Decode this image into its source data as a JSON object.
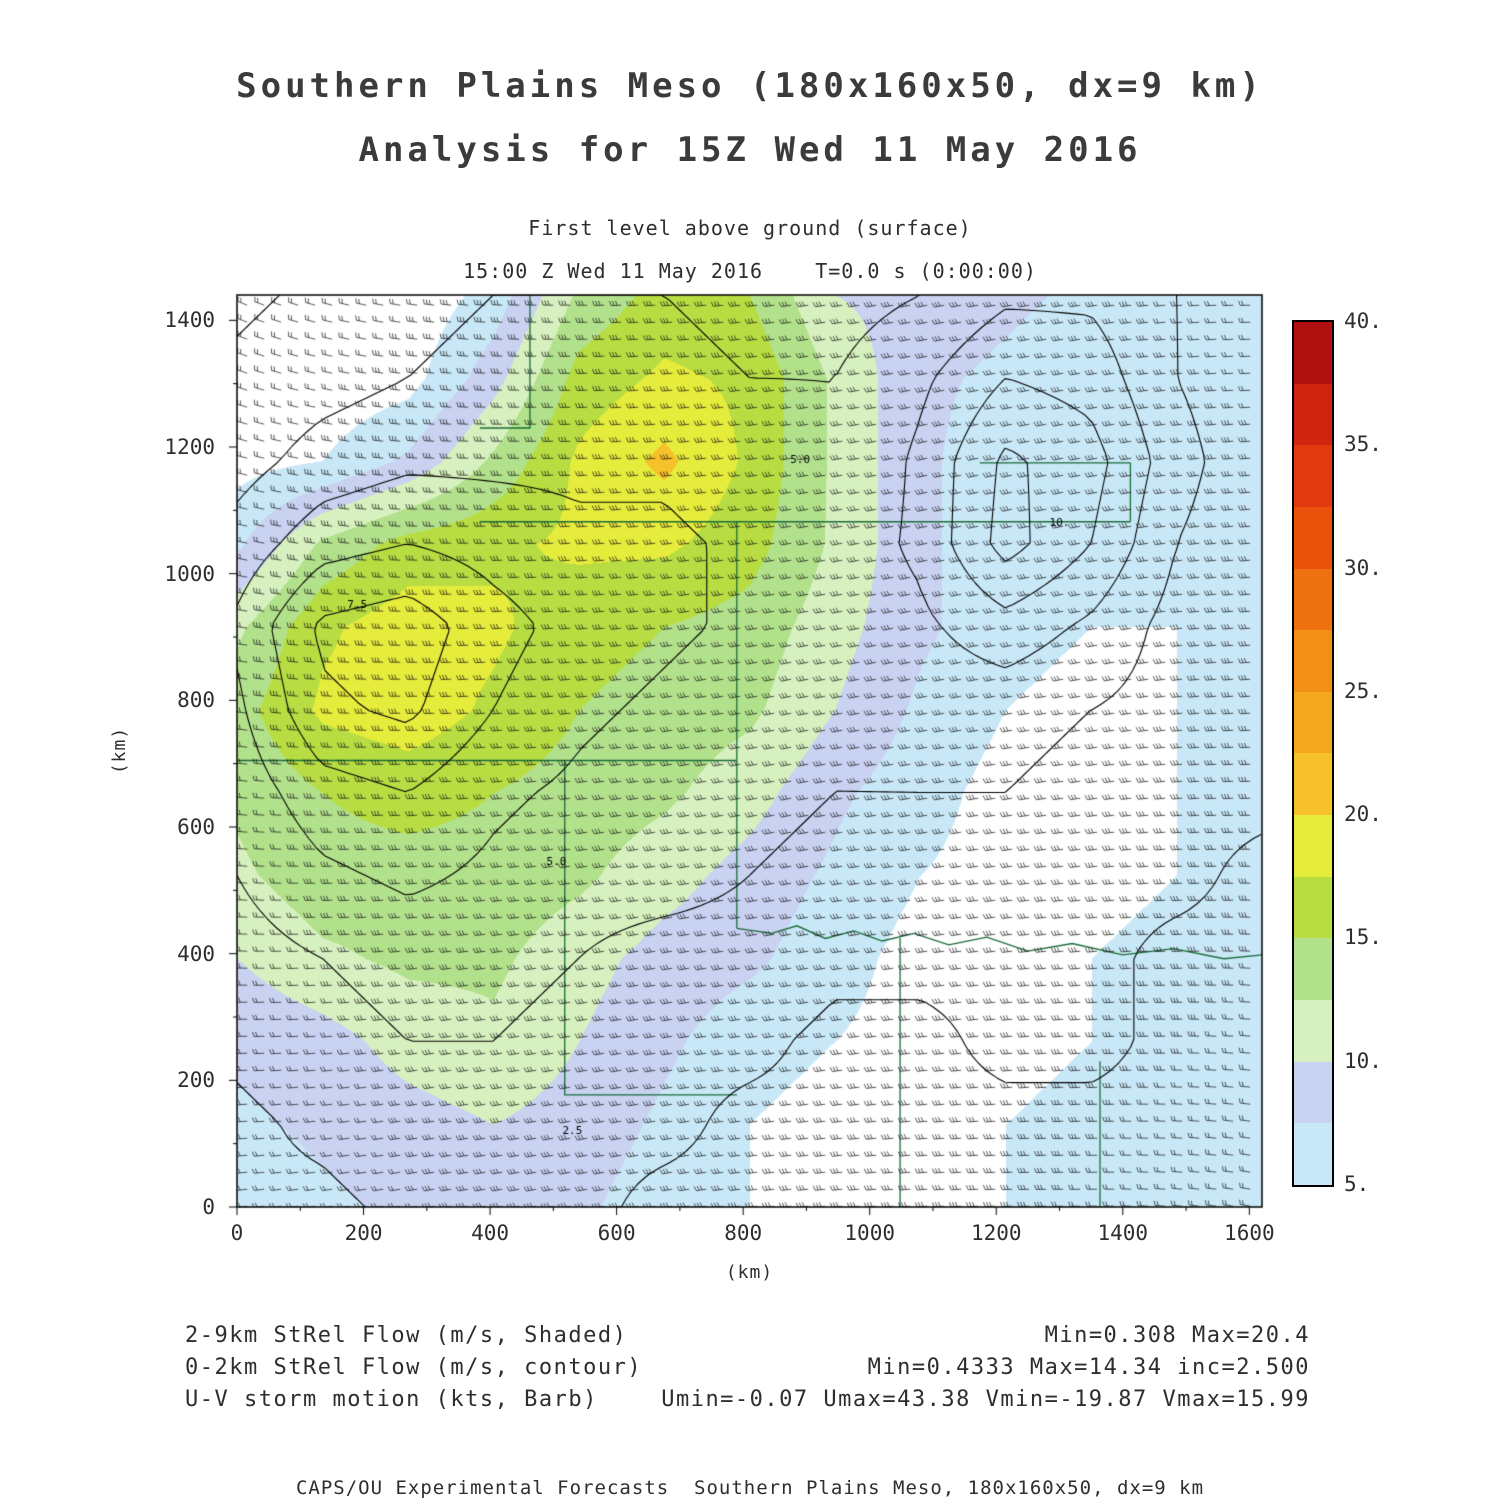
{
  "header": {
    "title_line1": "Southern Plains Meso (180x160x50, dx=9 km)",
    "title_line2": "Analysis for 15Z Wed 11 May 2016",
    "subtitle_line1": "First level above ground (surface)",
    "subtitle_line2": "15:00 Z Wed 11 May 2016    T=0.0 s (0:00:00)"
  },
  "axes": {
    "x_label": "(km)",
    "y_label": "(km)",
    "x_ticks": [
      0,
      200,
      400,
      600,
      800,
      1000,
      1200,
      1400,
      1600
    ],
    "y_ticks": [
      0,
      200,
      400,
      600,
      800,
      1000,
      1200,
      1400
    ]
  },
  "legend": {
    "rows": [
      {
        "label": "2-9km StRel Flow (m/s, Shaded)",
        "stats": "Min=0.308 Max=20.4"
      },
      {
        "label": "0-2km StRel Flow (m/s, contour)",
        "stats": "Min=0.4333 Max=14.34 inc=2.500"
      },
      {
        "label": "U-V storm motion (kts, Barb)",
        "stats": "Umin=-0.07 Umax=43.38 Vmin=-19.87 Vmax=15.99"
      }
    ]
  },
  "footer": {
    "text": "CAPS/OU Experimental Forecasts  Southern Plains Meso, 180x160x50, dx=9 km"
  },
  "chart_data": {
    "type": "heatmap",
    "title": "Southern Plains Meso (180x160x50, dx=9 km) Analysis for 15Z Wed 11 May 2016",
    "x_range": [
      0,
      1620
    ],
    "y_range": [
      0,
      1440
    ],
    "xlabel": "(km)",
    "ylabel": "(km)",
    "shaded_field": {
      "name": "2-9km StRel Flow (m/s, Shaded)",
      "min": 0.308,
      "max": 20.4
    },
    "contour_field": {
      "name": "0-2km StRel Flow (m/s, contour)",
      "min": 0.4333,
      "max": 14.34,
      "inc": 2.5
    },
    "barb_field": {
      "name": "U-V storm motion (kts, Barb)",
      "umin": -0.07,
      "umax": 43.38,
      "vmin": -19.87,
      "vmax": 15.99
    },
    "colorbar": {
      "min": 5,
      "step": 2.5,
      "max": 40,
      "colors": [
        "#c9e8f7",
        "#c9d2f1",
        "#d7f0bf",
        "#b2e18c",
        "#b8dd43",
        "#e6ec3c",
        "#f6c12b",
        "#f4a81f",
        "#f18f16",
        "#ee7110",
        "#ea520c",
        "#e23a0e",
        "#d02410",
        "#b01010"
      ],
      "tick_values": [
        5,
        10,
        15,
        20,
        25,
        30,
        35,
        40
      ],
      "tick_labels": [
        "5.",
        "10.",
        "15.",
        "20.",
        "25.",
        "30.",
        "35.",
        "40."
      ]
    },
    "shade_grid": [
      [
        3,
        3,
        3,
        6,
        13,
        16,
        15,
        10,
        9,
        8,
        7,
        7,
        7
      ],
      [
        3,
        3,
        4,
        9,
        16,
        18,
        17,
        12,
        8,
        7,
        6,
        7,
        7
      ],
      [
        4,
        5,
        8,
        13,
        18,
        20.6,
        17,
        12,
        8,
        6,
        5,
        6,
        7
      ],
      [
        7,
        13,
        16,
        17,
        18,
        18,
        16,
        12,
        8,
        6,
        5,
        6,
        6
      ],
      [
        12,
        17,
        19,
        18,
        16,
        15,
        14,
        11,
        8,
        6,
        5,
        5,
        6
      ],
      [
        14,
        18,
        19,
        17,
        15,
        14,
        13,
        10,
        7,
        5,
        4,
        5,
        6
      ],
      [
        13,
        15,
        16,
        15,
        14,
        13,
        11,
        8,
        6,
        4,
        4,
        5,
        6
      ],
      [
        12,
        14,
        14,
        14,
        13,
        11,
        9,
        7,
        5,
        4,
        4,
        5,
        6
      ],
      [
        10,
        12,
        13,
        13,
        11,
        9,
        8,
        6,
        4,
        4,
        5,
        6,
        6
      ],
      [
        8,
        9,
        11,
        12,
        10,
        8,
        6,
        5,
        4,
        4,
        5,
        6,
        6
      ],
      [
        7,
        8,
        9,
        10,
        9,
        7,
        5,
        4,
        4,
        5,
        6,
        6,
        7
      ],
      [
        6,
        7,
        8,
        9,
        8,
        6,
        5,
        4,
        4,
        5,
        6,
        7,
        7
      ]
    ],
    "contour_levels": [
      2.5,
      5,
      7.5,
      10,
      12.5
    ],
    "contour_grid": [
      [
        2,
        3,
        4,
        5,
        5,
        5,
        4,
        4,
        5,
        7,
        7,
        5,
        3
      ],
      [
        3,
        4,
        5,
        6,
        6,
        6,
        5,
        5,
        7,
        10,
        9,
        5,
        3
      ],
      [
        4,
        6,
        7,
        7,
        7,
        7,
        6,
        5,
        8,
        13,
        11,
        6,
        3
      ],
      [
        6,
        9,
        10,
        9,
        8,
        8,
        7,
        6,
        8,
        13.5,
        10,
        5,
        3
      ],
      [
        8,
        13,
        14,
        11,
        9,
        8,
        7,
        6,
        7,
        9,
        7,
        4,
        3
      ],
      [
        7,
        12,
        13,
        10,
        8,
        7,
        6,
        5,
        6,
        6,
        5,
        4,
        3
      ],
      [
        6,
        9,
        10,
        8,
        7,
        6,
        6,
        5,
        5,
        5,
        4,
        3,
        3
      ],
      [
        5,
        7,
        8,
        7,
        6,
        6,
        5,
        4,
        4,
        4,
        3,
        3,
        2
      ],
      [
        4,
        5,
        6,
        6,
        5,
        4,
        4,
        3,
        3,
        3,
        3,
        2,
        2
      ],
      [
        3,
        4,
        5,
        5,
        4,
        3,
        3,
        2,
        2,
        3,
        3,
        2,
        2
      ],
      [
        2,
        3,
        4,
        4,
        3,
        3,
        2,
        2,
        2,
        2,
        2,
        2,
        2
      ],
      [
        2,
        2,
        3,
        3,
        3,
        2,
        2,
        1,
        1,
        2,
        2,
        2,
        1
      ]
    ],
    "contour_labels": [
      {
        "text": "5.0",
        "x": 505,
        "y": 545
      },
      {
        "text": "7.5",
        "x": 190,
        "y": 950
      },
      {
        "text": "5.0",
        "x": 890,
        "y": 1180
      },
      {
        "text": "10.",
        "x": 1300,
        "y": 1080
      },
      {
        "text": "2.5",
        "x": 530,
        "y": 120
      }
    ],
    "barbs": {
      "spacing_px": 17,
      "u_grid": [
        [
          18,
          24,
          30,
          33,
          30,
          26,
          22
        ],
        [
          22,
          30,
          36,
          40,
          36,
          30,
          26
        ],
        [
          24,
          34,
          40,
          42,
          38,
          32,
          28
        ],
        [
          22,
          32,
          38,
          40,
          36,
          30,
          26
        ],
        [
          20,
          28,
          34,
          36,
          32,
          28,
          24
        ],
        [
          16,
          24,
          30,
          32,
          28,
          24,
          20
        ]
      ],
      "v_grid": [
        [
          -8,
          -4,
          0,
          4,
          6,
          4,
          0
        ],
        [
          -6,
          -2,
          2,
          6,
          8,
          6,
          2
        ],
        [
          -4,
          0,
          4,
          8,
          8,
          6,
          2
        ],
        [
          -2,
          2,
          6,
          8,
          6,
          4,
          0
        ],
        [
          0,
          4,
          6,
          6,
          4,
          2,
          -2
        ],
        [
          2,
          4,
          6,
          4,
          2,
          0,
          -4
        ]
      ]
    },
    "state_borders": {
      "color": "#1a6b38",
      "polylines": [
        [
          [
            0,
            705
          ],
          [
            790,
            705
          ]
        ],
        [
          [
            518,
            705
          ],
          [
            518,
            177
          ],
          [
            790,
            177
          ]
        ],
        [
          [
            790,
            705
          ],
          [
            790,
            440
          ]
        ],
        [
          [
            790,
            440
          ],
          [
            845,
            432
          ],
          [
            885,
            444
          ],
          [
            930,
            424
          ],
          [
            975,
            436
          ],
          [
            1020,
            420
          ],
          [
            1070,
            432
          ],
          [
            1125,
            414
          ],
          [
            1185,
            426
          ],
          [
            1250,
            404
          ],
          [
            1320,
            416
          ],
          [
            1400,
            398
          ],
          [
            1480,
            408
          ],
          [
            1560,
            392
          ],
          [
            1620,
            398
          ]
        ],
        [
          [
            384,
            1082
          ],
          [
            1412,
            1082
          ]
        ],
        [
          [
            790,
            705
          ],
          [
            790,
            1082
          ]
        ],
        [
          [
            463,
            1440
          ],
          [
            463,
            1230
          ],
          [
            384,
            1230
          ]
        ],
        [
          [
            1048,
            0
          ],
          [
            1048,
            425
          ]
        ],
        [
          [
            1364,
            0
          ],
          [
            1364,
            230
          ]
        ],
        [
          [
            1174,
            1175
          ],
          [
            1412,
            1175
          ]
        ],
        [
          [
            1412,
            1082
          ],
          [
            1412,
            1175
          ]
        ]
      ]
    }
  }
}
